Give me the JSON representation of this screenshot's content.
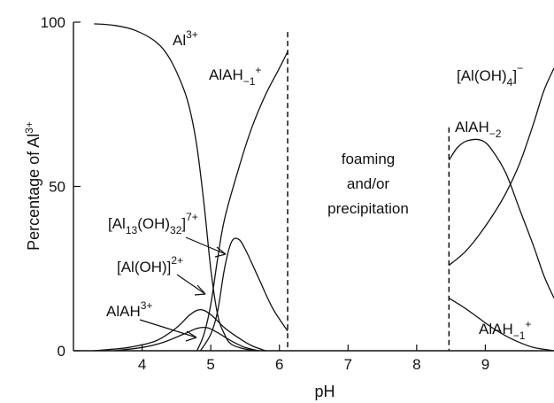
{
  "chart_data": {
    "type": "line",
    "title": "",
    "xlabel": "pH",
    "ylabel": "Percentage of Al",
    "ylabel_sup": "3+",
    "xlim": [
      3.0,
      10.0
    ],
    "ylim": [
      0,
      100
    ],
    "xticks": [
      4,
      5,
      6,
      7,
      8,
      9
    ],
    "yticks": [
      0,
      50,
      100
    ],
    "grid": false,
    "legend": "none",
    "dashed_lines_x": [
      6.12,
      8.47
    ],
    "annotation_text": [
      "foaming",
      "and/or",
      "precipitation"
    ],
    "labels": {
      "al3": {
        "base": "Al",
        "sup": "3+"
      },
      "alah_m1": {
        "base": "AlAH",
        "sub": "−1",
        "sup": "+"
      },
      "al13": {
        "pre": "[Al",
        "sub": "13",
        "mid": "(OH)",
        "sub2": "32",
        "post": "]",
        "sup": "7+"
      },
      "aloh": {
        "base": "[Al(OH)]",
        "sup": "2+"
      },
      "alah3": {
        "base": "AlAH",
        "sup": "3+"
      },
      "aloh4": {
        "pre": "[Al(OH)",
        "sub": "4",
        "post": "]",
        "sup": "−"
      },
      "alah_m2": {
        "base": "AlAH",
        "sub": "−2"
      },
      "alah_m1_high": {
        "base": "AlAH",
        "sub": "−1",
        "sup": "+"
      }
    },
    "series": [
      {
        "id": "al3",
        "x": [
          3.3,
          3.6,
          3.9,
          4.2,
          4.4,
          4.6,
          4.7,
          4.8,
          4.9,
          5.0,
          5.1,
          5.2,
          5.3,
          5.5,
          5.7
        ],
        "values": [
          99.5,
          99,
          97.5,
          94,
          89,
          80,
          73,
          62,
          45,
          25,
          11,
          5,
          2,
          0.5,
          0
        ]
      },
      {
        "id": "alah_m1",
        "x": [
          4.8,
          4.9,
          5.0,
          5.1,
          5.2,
          5.4,
          5.6,
          5.8,
          6.0,
          6.12
        ],
        "values": [
          0,
          5,
          14,
          28,
          40,
          55,
          68,
          78,
          86,
          91
        ]
      },
      {
        "id": "al13",
        "x": [
          4.85,
          5.0,
          5.1,
          5.2,
          5.3,
          5.4,
          5.5,
          5.7,
          5.9,
          6.12
        ],
        "values": [
          0,
          5,
          12,
          25,
          33,
          34,
          31,
          22,
          13,
          6
        ]
      },
      {
        "id": "aloh",
        "x": [
          3.3,
          3.8,
          4.2,
          4.5,
          4.7,
          4.85,
          5.0,
          5.2,
          5.4,
          5.6,
          5.8
        ],
        "values": [
          0,
          1,
          3,
          7,
          11,
          12.5,
          11,
          7,
          4,
          1.5,
          0
        ]
      },
      {
        "id": "alah3",
        "x": [
          3.6,
          4.0,
          4.3,
          4.6,
          4.8,
          4.95,
          5.1,
          5.3,
          5.5,
          5.7
        ],
        "values": [
          0,
          1,
          2.5,
          5,
          6.8,
          7,
          5.5,
          3,
          1,
          0
        ]
      },
      {
        "id": "alah_m2",
        "x": [
          8.47,
          8.6,
          8.75,
          8.95,
          9.1,
          9.3,
          9.5,
          9.7,
          9.85,
          10.0
        ],
        "values": [
          58,
          62,
          64,
          64,
          61,
          54,
          43,
          32,
          23,
          16
        ]
      },
      {
        "id": "aloh4",
        "x": [
          8.47,
          8.7,
          8.9,
          9.1,
          9.3,
          9.5,
          9.7,
          9.85,
          10.0
        ],
        "values": [
          26,
          30,
          35,
          41,
          48,
          57,
          69,
          79,
          86
        ]
      },
      {
        "id": "alah_m1_high",
        "x": [
          8.47,
          8.7,
          8.9,
          9.1,
          9.3,
          9.5,
          9.7,
          9.9,
          10.0
        ],
        "values": [
          16,
          13,
          10,
          7,
          4.5,
          2.5,
          1,
          0.3,
          0
        ]
      }
    ]
  }
}
